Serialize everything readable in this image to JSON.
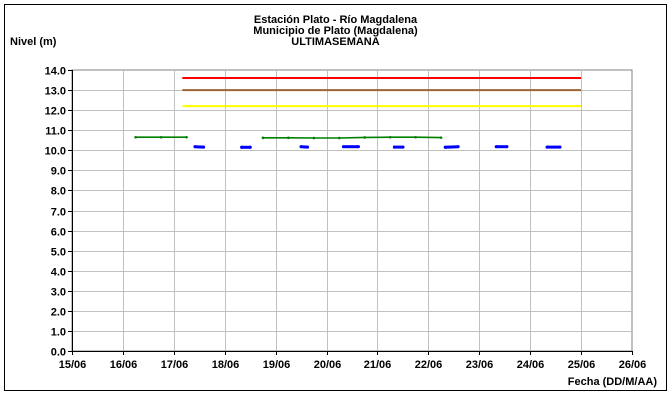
{
  "chart_data": {
    "type": "line",
    "title_lines": [
      "Estación Plato - Río Magdalena",
      "Municipio de Plato (Magdalena)",
      "ULTIMASEMANA"
    ],
    "xlabel": "Fecha (DD/M/AA)",
    "ylabel": "Nivel (m)",
    "x_ticks": [
      "15/06",
      "16/06",
      "17/06",
      "18/06",
      "19/06",
      "20/06",
      "21/06",
      "22/06",
      "23/06",
      "24/06",
      "25/06",
      "26/06"
    ],
    "y_ticks": [
      "0.0",
      "1.0",
      "2.0",
      "3.0",
      "4.0",
      "5.0",
      "6.0",
      "7.0",
      "8.0",
      "9.0",
      "10.0",
      "11.0",
      "12.0",
      "13.0",
      "14.0"
    ],
    "ylim": [
      0,
      14
    ],
    "xlim": [
      "15/06",
      "26/06"
    ],
    "grid": true,
    "reference_lines": [
      {
        "color": "#ff0000",
        "y": 13.6,
        "x_start": "17/06 04:00",
        "x_end": "25/06"
      },
      {
        "color": "#996633",
        "y": 13.0,
        "x_start": "17/06 04:00",
        "x_end": "25/06"
      },
      {
        "color": "#ffff00",
        "y": 12.2,
        "x_start": "17/06 04:00",
        "x_end": "25/06"
      }
    ],
    "series": [
      {
        "color": "#008000",
        "segments": [
          [
            [
              "16/06 06:00",
              10.65
            ],
            [
              "16/06 18:00",
              10.65
            ],
            [
              "17/06 06:00",
              10.65
            ]
          ],
          [
            [
              "18/06 18:00",
              10.62
            ],
            [
              "19/06 06:00",
              10.62
            ],
            [
              "19/06 18:00",
              10.61
            ],
            [
              "20/06 06:00",
              10.61
            ],
            [
              "20/06 18:00",
              10.64
            ],
            [
              "21/06 06:00",
              10.65
            ],
            [
              "21/06 18:00",
              10.65
            ],
            [
              "22/06 06:00",
              10.63
            ]
          ]
        ]
      },
      {
        "color": "#0000ff",
        "segments": [
          [
            [
              "17/06 10:00",
              10.18
            ],
            [
              "17/06 14:00",
              10.16
            ]
          ],
          [
            [
              "18/06 08:00",
              10.15
            ],
            [
              "18/06 12:00",
              10.15
            ]
          ],
          [
            [
              "19/06 12:00",
              10.18
            ],
            [
              "19/06 15:00",
              10.16
            ]
          ],
          [
            [
              "20/06 08:00",
              10.18
            ],
            [
              "20/06 15:00",
              10.18
            ]
          ],
          [
            [
              "21/06 08:00",
              10.16
            ],
            [
              "21/06 12:00",
              10.16
            ]
          ],
          [
            [
              "22/06 08:00",
              10.15
            ],
            [
              "22/06 14:00",
              10.18
            ]
          ],
          [
            [
              "23/06 08:00",
              10.18
            ],
            [
              "23/06 13:00",
              10.18
            ]
          ],
          [
            [
              "24/06 08:00",
              10.16
            ],
            [
              "24/06 14:00",
              10.16
            ]
          ]
        ]
      }
    ]
  }
}
